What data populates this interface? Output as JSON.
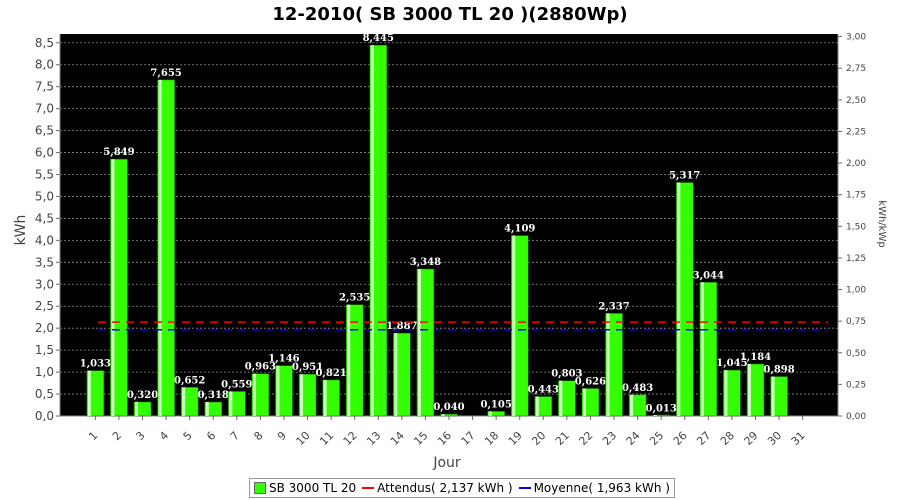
{
  "chart_data": {
    "type": "bar",
    "title": "12-2010( SB 3000 TL 20 )(2880Wp)",
    "xlabel": "Jour",
    "ylabel": "kWh",
    "ylabel_right": "kWh/kWp",
    "categories": [
      "1",
      "2",
      "3",
      "4",
      "5",
      "6",
      "7",
      "8",
      "9",
      "10",
      "11",
      "12",
      "13",
      "14",
      "15",
      "16",
      "17",
      "18",
      "19",
      "20",
      "21",
      "22",
      "23",
      "24",
      "25",
      "26",
      "27",
      "28",
      "29",
      "30",
      "31"
    ],
    "series": [
      {
        "name": "SB 3000 TL 20",
        "values": [
          1.033,
          5.849,
          0.32,
          7.655,
          0.652,
          0.318,
          0.559,
          0.963,
          1.146,
          0.951,
          0.821,
          2.535,
          8.445,
          1.887,
          3.348,
          0.04,
          null,
          0.105,
          4.109,
          0.443,
          0.803,
          0.626,
          2.337,
          0.483,
          0.013,
          5.317,
          3.044,
          1.045,
          1.184,
          0.898,
          null
        ],
        "labels": [
          "1,033",
          "5,849",
          "0,320",
          "7,655",
          "0,652",
          "0,318",
          "0,559",
          "0,963",
          "1,146",
          "0,951",
          "0,821",
          "2,535",
          "8,445",
          "1,887",
          "3,348",
          "0,040",
          "",
          "0,105",
          "4,109",
          "0,443",
          "0,803",
          "0,626",
          "2,337",
          "0,483",
          "0,013",
          "5,317",
          "3,044",
          "1,045",
          "1,184",
          "0,898",
          ""
        ],
        "color": "#33ff00"
      }
    ],
    "reference_lines": [
      {
        "name": "Attendus( 2,137 kWh )",
        "value": 2.137,
        "color": "#ff0000"
      },
      {
        "name": "Moyenne( 1,963 kWh )",
        "value": 1.963,
        "color": "#0000ff"
      }
    ],
    "ylim": [
      0,
      8.7
    ],
    "yticks": [
      "0,0",
      "0,5",
      "1,0",
      "1,5",
      "2,0",
      "2,5",
      "3,0",
      "3,5",
      "4,0",
      "4,5",
      "5,0",
      "5,5",
      "6,0",
      "6,5",
      "7,0",
      "7,5",
      "8,0",
      "8,5"
    ],
    "ylim_right": [
      0,
      3.0208
    ],
    "yticks_right": [
      "0,00",
      "0,25",
      "0,50",
      "0,75",
      "1,00",
      "1,25",
      "1,50",
      "1,75",
      "2,00",
      "2,25",
      "2,50",
      "2,75",
      "3,00"
    ],
    "grid": true,
    "background": "#000000",
    "legend_position": "bottom"
  }
}
